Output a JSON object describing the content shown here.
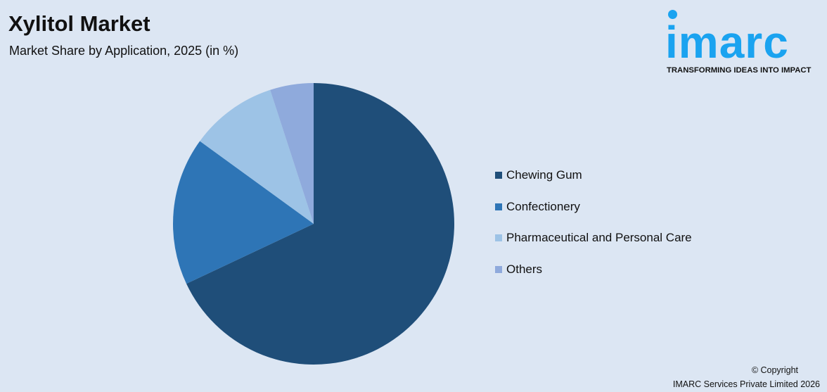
{
  "header": {
    "title": "Xylitol Market",
    "subtitle": "Market Share by Application, 2025 (in %)"
  },
  "logo": {
    "word": "imarc",
    "tagline": "TRANSFORMING IDEAS INTO IMPACT",
    "color": "#1aa3f0"
  },
  "chart_data": {
    "type": "pie",
    "title": "Xylitol Market",
    "subtitle": "Market Share by Application, 2025 (in %)",
    "categories": [
      "Chewing Gum",
      "Confectionery",
      "Pharmaceutical and Personal Care",
      "Others"
    ],
    "values": [
      68,
      17,
      10,
      5
    ],
    "colors": [
      "#1f4e79",
      "#2e75b6",
      "#9dc3e6",
      "#8faadc"
    ],
    "start_angle": "12 o'clock",
    "direction": "clockwise",
    "legend_position": "right"
  },
  "footer": {
    "copyright": "© Copyright",
    "company": "IMARC Services Private Limited 2026"
  }
}
